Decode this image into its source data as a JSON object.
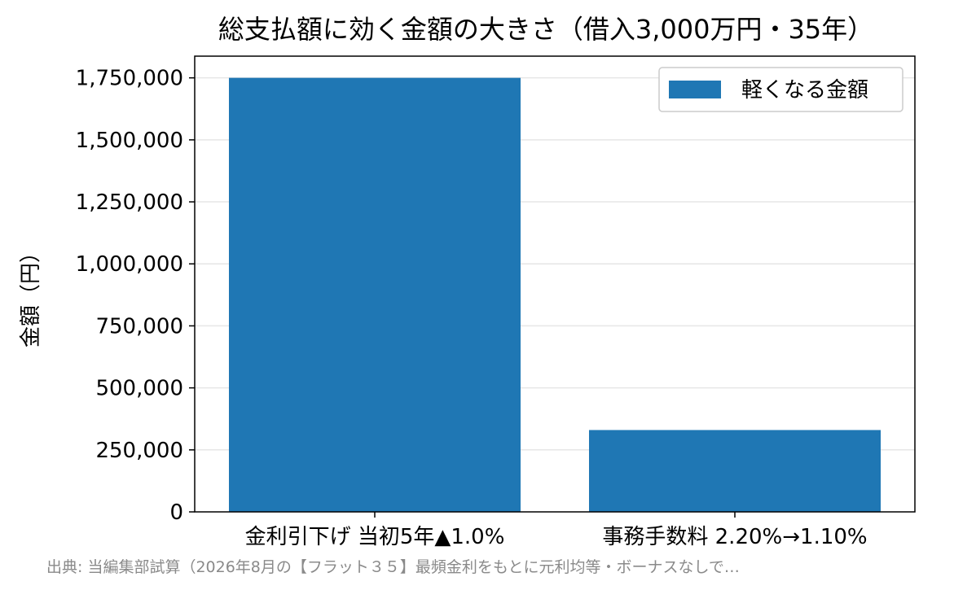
{
  "chart_data": {
    "type": "bar",
    "title": "総支払額に効く金額の大きさ（借入3,000万円・35年）",
    "ylabel": "金額（円）",
    "xlabel": "",
    "categories": [
      "金利引下げ 当初5年▲1.0%",
      "事務手数料 2.20%→1.10%"
    ],
    "series": [
      {
        "name": "軽くなる金額",
        "values": [
          1750000,
          330000
        ]
      }
    ],
    "ylim": [
      0,
      1837500
    ],
    "yticks": [
      0,
      250000,
      500000,
      750000,
      1000000,
      1250000,
      1500000,
      1750000
    ],
    "ytick_labels": [
      "0",
      "250,000",
      "500,000",
      "750,000",
      "1,000,000",
      "1,250,000",
      "1,500,000",
      "1,750,000"
    ],
    "grid": "y",
    "legend_position": "top-right",
    "bar_color": "#1f77b4",
    "source": "出典: 当編集部試算（2026年8月の【フラット３５】最頻金利をもとに元利均等・ボーナスなしで…"
  }
}
